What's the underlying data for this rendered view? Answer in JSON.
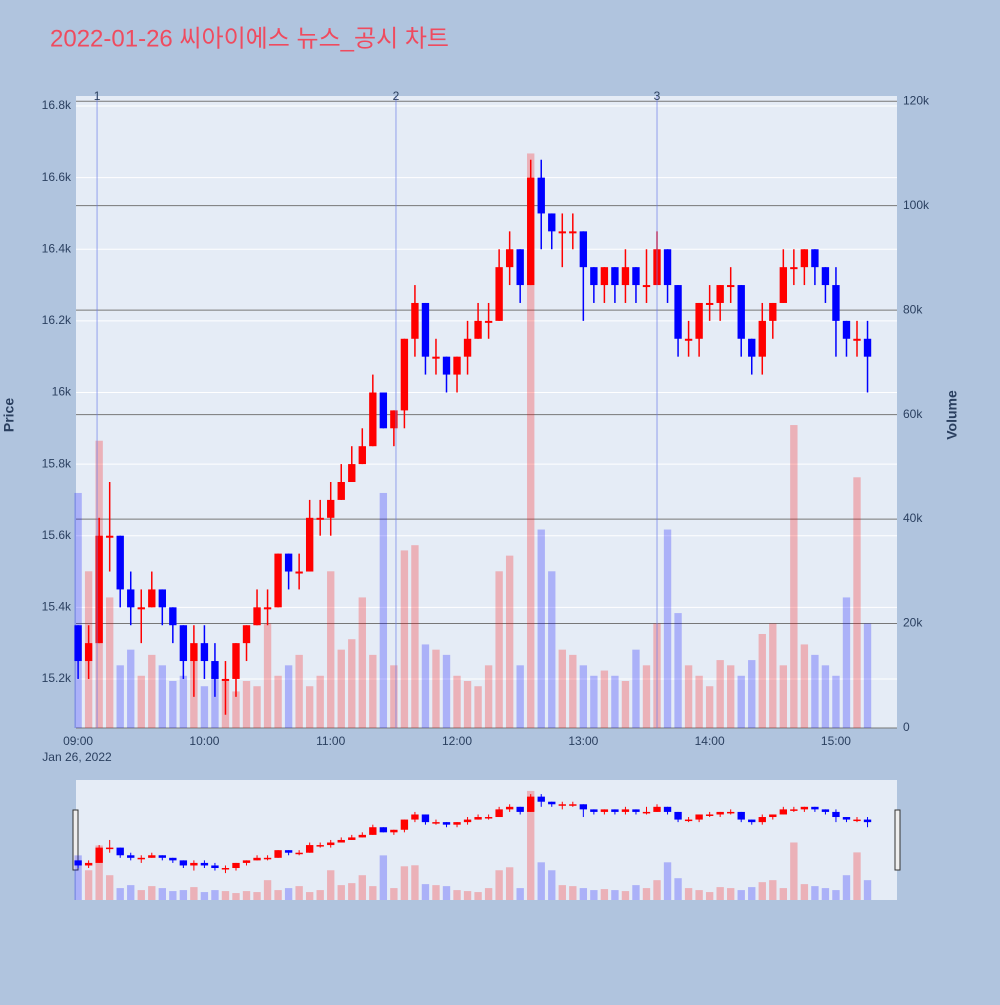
{
  "chart_data": {
    "type": "candlestick",
    "title": "2022-01-26 씨아이에스 뉴스_공시 차트",
    "y_title": "Price",
    "y2_title": "Volume",
    "x_date_label": "Jan 26, 2022",
    "up_color": "#ff0000",
    "down_color": "#0000ff",
    "xlim": [
      "08:59",
      "15:29"
    ],
    "xticks": [
      "09:00",
      "10:00",
      "11:00",
      "12:00",
      "13:00",
      "14:00",
      "15:00"
    ],
    "ylim": [
      15063,
      16828
    ],
    "yticks": [
      {
        "value": 15200,
        "label": "15.2k"
      },
      {
        "value": 15400,
        "label": "15.4k"
      },
      {
        "value": 15600,
        "label": "15.6k"
      },
      {
        "value": 15800,
        "label": "15.8k"
      },
      {
        "value": 16000,
        "label": "16k"
      },
      {
        "value": 16200,
        "label": "16.2k"
      },
      {
        "value": 16400,
        "label": "16.4k"
      },
      {
        "value": 16600,
        "label": "16.6k"
      },
      {
        "value": 16800,
        "label": "16.8k"
      }
    ],
    "y2lim": [
      0,
      121000
    ],
    "y2ticks": [
      0,
      {
        "value": 20000,
        "label": "20k"
      },
      {
        "value": 40000,
        "label": "40k"
      },
      {
        "value": 60000,
        "label": "60k"
      },
      {
        "value": 80000,
        "label": "80k"
      },
      {
        "value": 100000,
        "label": "100k"
      },
      {
        "value": 120000,
        "label": "120k"
      }
    ],
    "markers": [
      {
        "label": "1",
        "time": "09:09"
      },
      {
        "label": "2",
        "time": "11:31"
      },
      {
        "label": "3",
        "time": "13:35"
      }
    ],
    "x": [
      "09:00",
      "09:05",
      "09:10",
      "09:15",
      "09:20",
      "09:25",
      "09:30",
      "09:35",
      "09:40",
      "09:45",
      "09:50",
      "09:55",
      "10:00",
      "10:05",
      "10:10",
      "10:15",
      "10:20",
      "10:25",
      "10:30",
      "10:35",
      "10:40",
      "10:45",
      "10:50",
      "10:55",
      "11:00",
      "11:05",
      "11:10",
      "11:15",
      "11:20",
      "11:25",
      "11:30",
      "11:35",
      "11:40",
      "11:45",
      "11:50",
      "11:55",
      "12:00",
      "12:05",
      "12:10",
      "12:15",
      "12:20",
      "12:25",
      "12:30",
      "12:35",
      "12:40",
      "12:45",
      "12:50",
      "12:55",
      "13:00",
      "13:05",
      "13:10",
      "13:15",
      "13:20",
      "13:25",
      "13:30",
      "13:35",
      "13:40",
      "13:45",
      "13:50",
      "13:55",
      "14:00",
      "14:05",
      "14:10",
      "14:15",
      "14:20",
      "14:25",
      "14:30",
      "14:35",
      "14:40",
      "14:45",
      "14:50",
      "14:55",
      "15:00",
      "15:05",
      "15:10",
      "15:15"
    ],
    "open": [
      15350,
      15250,
      15300,
      15600,
      15600,
      15450,
      15400,
      15400,
      15450,
      15400,
      15350,
      15250,
      15300,
      15250,
      15200,
      15200,
      15300,
      15350,
      15400,
      15400,
      15550,
      15500,
      15500,
      15650,
      15650,
      15700,
      15750,
      15800,
      15850,
      16000,
      15900,
      15950,
      16150,
      16250,
      16100,
      16100,
      16050,
      16100,
      16150,
      16200,
      16200,
      16350,
      16400,
      16300,
      16600,
      16500,
      16450,
      16450,
      16450,
      16350,
      16300,
      16350,
      16300,
      16350,
      16300,
      16300,
      16400,
      16300,
      16150,
      16150,
      16250,
      16250,
      16300,
      16300,
      16150,
      16100,
      16200,
      16250,
      16350,
      16350,
      16400,
      16350,
      16300,
      16200,
      16150,
      16150
    ],
    "high": [
      15350,
      15350,
      15650,
      15750,
      15600,
      15500,
      15450,
      15500,
      15450,
      15400,
      15350,
      15350,
      15350,
      15300,
      15250,
      15300,
      15350,
      15450,
      15450,
      15550,
      15550,
      15550,
      15700,
      15700,
      15750,
      15800,
      15850,
      15900,
      16050,
      16000,
      15950,
      16150,
      16300,
      16250,
      16150,
      16100,
      16100,
      16200,
      16250,
      16250,
      16400,
      16450,
      16400,
      16650,
      16650,
      16500,
      16500,
      16500,
      16450,
      16350,
      16350,
      16350,
      16400,
      16350,
      16400,
      16450,
      16400,
      16300,
      16200,
      16250,
      16300,
      16300,
      16350,
      16300,
      16150,
      16250,
      16250,
      16400,
      16400,
      16400,
      16400,
      16350,
      16350,
      16200,
      16200,
      16200
    ],
    "low": [
      15200,
      15200,
      15300,
      15500,
      15400,
      15350,
      15300,
      15400,
      15350,
      15300,
      15200,
      15150,
      15200,
      15150,
      15100,
      15150,
      15250,
      15350,
      15350,
      15400,
      15450,
      15450,
      15500,
      15600,
      15600,
      15700,
      15750,
      15800,
      15850,
      15900,
      15850,
      15900,
      16100,
      16050,
      16050,
      16000,
      16000,
      16050,
      16150,
      16150,
      16200,
      16300,
      16250,
      16300,
      16400,
      16400,
      16350,
      16400,
      16200,
      16250,
      16250,
      16250,
      16250,
      16250,
      16250,
      16300,
      16250,
      16100,
      16100,
      16100,
      16200,
      16200,
      16250,
      16100,
      16050,
      16050,
      16150,
      16250,
      16300,
      16300,
      16300,
      16250,
      16100,
      16100,
      16100,
      16000
    ],
    "close": [
      15250,
      15300,
      15600,
      15600,
      15450,
      15400,
      15400,
      15450,
      15400,
      15350,
      15250,
      15300,
      15250,
      15200,
      15200,
      15300,
      15350,
      15400,
      15400,
      15550,
      15500,
      15500,
      15650,
      15650,
      15700,
      15750,
      15800,
      15850,
      16000,
      15900,
      15950,
      16150,
      16250,
      16100,
      16100,
      16050,
      16100,
      16150,
      16200,
      16200,
      16350,
      16400,
      16300,
      16600,
      16500,
      16450,
      16450,
      16450,
      16350,
      16300,
      16350,
      16300,
      16350,
      16300,
      16300,
      16400,
      16300,
      16150,
      16150,
      16250,
      16250,
      16300,
      16300,
      16150,
      16100,
      16200,
      16250,
      16350,
      16350,
      16400,
      16350,
      16300,
      16200,
      16150,
      16150,
      16100
    ],
    "volume": [
      45000,
      30000,
      55000,
      25000,
      12000,
      15000,
      10000,
      14000,
      12000,
      9000,
      10000,
      13000,
      8000,
      10000,
      9000,
      7000,
      9000,
      8000,
      20000,
      10000,
      12000,
      14000,
      8000,
      10000,
      30000,
      15000,
      17000,
      25000,
      14000,
      45000,
      12000,
      34000,
      35000,
      16000,
      15000,
      14000,
      10000,
      9000,
      8000,
      12000,
      30000,
      33000,
      12000,
      110000,
      38000,
      30000,
      15000,
      14000,
      12000,
      10000,
      11000,
      10000,
      9000,
      15000,
      12000,
      20000,
      38000,
      22000,
      12000,
      10000,
      8000,
      13000,
      12000,
      10000,
      13000,
      18000,
      20000,
      12000,
      58000,
      16000,
      14000,
      12000,
      10000,
      25000,
      48000,
      20000
    ]
  }
}
